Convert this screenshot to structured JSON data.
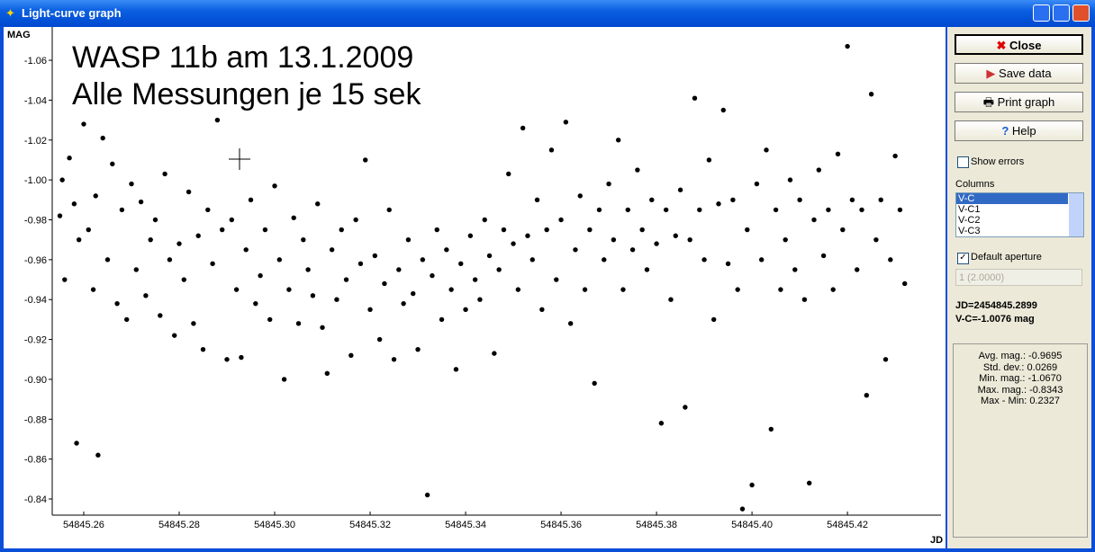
{
  "window": {
    "title": "Light-curve graph"
  },
  "panel": {
    "buttons": [
      "Close",
      "Save data",
      "Print graph",
      "Help"
    ],
    "show_errors": "Show errors",
    "columns_label": "Columns",
    "columns": [
      "V-C",
      "V-C1",
      "V-C2",
      "V-C3"
    ],
    "default_aperture": "Default aperture",
    "aperture": "1 (2.0000)",
    "jd": "JD=2454845.2899",
    "vc": "V-C=-1.0076 mag",
    "stats": [
      "Avg. mag.: -0.9695",
      "Std. dev.: 0.0269",
      "Min. mag.: -1.0670",
      "Max. mag.: -0.8343",
      "Max - Min: 0.2327"
    ]
  },
  "chart_data": {
    "type": "scatter",
    "annotations": [
      "WASP 11b am 13.1.2009",
      "Alle Messungen je 15 sek"
    ],
    "y_label": "MAG",
    "x_label": "JD",
    "xlim": [
      54845.2534,
      54845.4396
    ],
    "ylim": [
      -0.8319,
      -1.0767
    ],
    "xticks": [
      54845.26,
      54845.28,
      {
        "value": 54845.3,
        "label": "54845.30"
      },
      54845.32,
      54845.34,
      54845.36,
      54845.38,
      {
        "value": 54845.4,
        "label": "54845.40"
      },
      54845.42
    ],
    "yticks": [
      -1.06,
      -1.04,
      -1.02,
      {
        "value": -1,
        "label": "-1.00"
      },
      -0.98,
      -0.96,
      -0.94,
      -0.92,
      {
        "value": -0.9,
        "label": "-0.90"
      },
      -0.88,
      -0.86,
      -0.84
    ],
    "series": [
      {
        "color": "#000000",
        "x": [
          54845.255,
          54845.2555,
          54845.256,
          54845.257,
          54845.258,
          54845.2585,
          54845.259,
          54845.26,
          54845.261,
          54845.262,
          54845.2625,
          54845.263,
          54845.264,
          54845.265,
          54845.266,
          54845.267,
          54845.268,
          54845.269,
          54845.27,
          54845.271,
          54845.272,
          54845.273,
          54845.274,
          54845.275,
          54845.276,
          54845.277,
          54845.278,
          54845.279,
          54845.28,
          54845.281,
          54845.282,
          54845.283,
          54845.284,
          54845.285,
          54845.286,
          54845.287,
          54845.288,
          54845.289,
          54845.29,
          54845.291,
          54845.292,
          54845.293,
          54845.294,
          54845.295,
          54845.296,
          54845.297,
          54845.298,
          54845.299,
          54845.3,
          54845.301,
          54845.302,
          54845.303,
          54845.304,
          54845.305,
          54845.306,
          54845.307,
          54845.308,
          54845.309,
          54845.31,
          54845.311,
          54845.312,
          54845.313,
          54845.314,
          54845.315,
          54845.316,
          54845.317,
          54845.318,
          54845.319,
          54845.32,
          54845.321,
          54845.322,
          54845.323,
          54845.324,
          54845.325,
          54845.326,
          54845.327,
          54845.328,
          54845.329,
          54845.33,
          54845.331,
          54845.332,
          54845.333,
          54845.334,
          54845.335,
          54845.336,
          54845.337,
          54845.338,
          54845.339,
          54845.34,
          54845.341,
          54845.342,
          54845.343,
          54845.344,
          54845.345,
          54845.346,
          54845.347,
          54845.348,
          54845.349,
          54845.35,
          54845.351,
          54845.352,
          54845.353,
          54845.354,
          54845.355,
          54845.356,
          54845.357,
          54845.358,
          54845.359,
          54845.36,
          54845.361,
          54845.362,
          54845.363,
          54845.364,
          54845.365,
          54845.366,
          54845.367,
          54845.368,
          54845.369,
          54845.37,
          54845.371,
          54845.372,
          54845.373,
          54845.374,
          54845.375,
          54845.376,
          54845.377,
          54845.378,
          54845.379,
          54845.38,
          54845.381,
          54845.382,
          54845.383,
          54845.384,
          54845.385,
          54845.386,
          54845.387,
          54845.388,
          54845.389,
          54845.39,
          54845.391,
          54845.392,
          54845.393,
          54845.394,
          54845.395,
          54845.396,
          54845.397,
          54845.398,
          54845.399,
          54845.4,
          54845.401,
          54845.402,
          54845.403,
          54845.404,
          54845.405,
          54845.406,
          54845.407,
          54845.408,
          54845.409,
          54845.41,
          54845.411,
          54845.412,
          54845.413,
          54845.414,
          54845.415,
          54845.416,
          54845.417,
          54845.418,
          54845.419,
          54845.42,
          54845.421,
          54845.422,
          54845.423,
          54845.424,
          54845.425,
          54845.426,
          54845.427,
          54845.428,
          54845.429,
          54845.43,
          54845.431,
          54845.432
        ],
        "values": [
          -0.982,
          -1.0,
          -0.95,
          -1.011,
          -0.988,
          -0.868,
          -0.97,
          -1.028,
          -0.975,
          -0.945,
          -0.992,
          -0.862,
          -1.021,
          -0.96,
          -1.008,
          -0.938,
          -0.985,
          -0.93,
          -0.998,
          -0.955,
          -0.989,
          -0.942,
          -0.97,
          -0.98,
          -0.932,
          -1.003,
          -0.96,
          -0.922,
          -0.968,
          -0.95,
          -0.994,
          -0.928,
          -0.972,
          -0.915,
          -0.985,
          -0.958,
          -1.03,
          -0.975,
          -0.91,
          -0.98,
          -0.945,
          -0.911,
          -0.965,
          -0.99,
          -0.938,
          -0.952,
          -0.975,
          -0.93,
          -0.997,
          -0.96,
          -0.9,
          -0.945,
          -0.981,
          -0.928,
          -0.97,
          -0.955,
          -0.942,
          -0.988,
          -0.926,
          -0.903,
          -0.965,
          -0.94,
          -0.975,
          -0.95,
          -0.912,
          -0.98,
          -0.958,
          -1.01,
          -0.935,
          -0.962,
          -0.92,
          -0.948,
          -0.985,
          -0.91,
          -0.955,
          -0.938,
          -0.97,
          -0.943,
          -0.915,
          -0.96,
          -0.842,
          -0.952,
          -0.975,
          -0.93,
          -0.965,
          -0.945,
          -0.905,
          -0.958,
          -0.935,
          -0.972,
          -0.95,
          -0.94,
          -0.98,
          -0.962,
          -0.913,
          -0.955,
          -0.975,
          -1.003,
          -0.968,
          -0.945,
          -1.026,
          -0.972,
          -0.96,
          -0.99,
          -0.935,
          -0.975,
          -1.015,
          -0.95,
          -0.98,
          -1.029,
          -0.928,
          -0.965,
          -0.992,
          -0.945,
          -0.975,
          -0.898,
          -0.985,
          -0.96,
          -0.998,
          -0.97,
          -1.02,
          -0.945,
          -0.985,
          -0.965,
          -1.005,
          -0.975,
          -0.955,
          -0.99,
          -0.968,
          -0.878,
          -0.985,
          -0.94,
          -0.972,
          -0.995,
          -0.886,
          -0.97,
          -1.041,
          -0.985,
          -0.96,
          -1.01,
          -0.93,
          -0.988,
          -1.035,
          -0.958,
          -0.99,
          -0.945,
          -0.835,
          -0.975,
          -0.847,
          -0.998,
          -0.96,
          -1.015,
          -0.875,
          -0.985,
          -0.945,
          -0.97,
          -1.0,
          -0.955,
          -0.99,
          -0.94,
          -0.848,
          -0.98,
          -1.005,
          -0.962,
          -0.985,
          -0.945,
          -1.013,
          -0.975,
          -1.067,
          -0.99,
          -0.955,
          -0.985,
          -0.892,
          -1.043,
          -0.97,
          -0.99,
          -0.91,
          -0.96,
          -1.012,
          -0.985,
          -0.948
        ]
      }
    ]
  }
}
